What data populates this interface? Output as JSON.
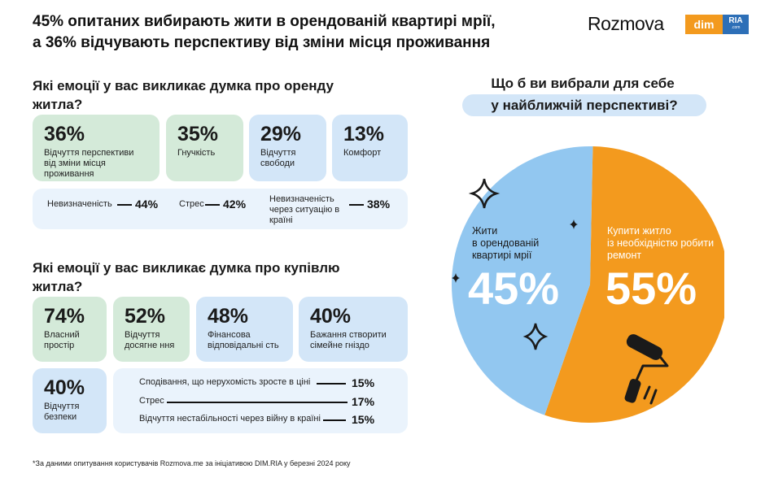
{
  "header": {
    "title_line1": "45% опитаних вибирають жити в орендованій квартирі мрії,",
    "title_line2": "а 36% відчувають перспективу від зміни місця проживання",
    "brand": "Rozmova",
    "logo_dim": "dim",
    "logo_ria": "RIA",
    "logo_ria_sub": ".com"
  },
  "rent": {
    "question_line1": "Які емоції у вас викликає думка про оренду",
    "question_line2": "житла?",
    "cards": [
      {
        "pct": "36%",
        "label": "Відчуття перспективи від зміни місця проживання"
      },
      {
        "pct": "35%",
        "label": "Гнучкість"
      },
      {
        "pct": "29%",
        "label": "Відчуття свободи"
      },
      {
        "pct": "13%",
        "label": "Комфорт"
      }
    ],
    "bar_items": [
      {
        "label": "Невизначеність",
        "value": "44%"
      },
      {
        "label": "Стрес",
        "value": "42%"
      },
      {
        "label": "Невизначеність через ситуацію в країні",
        "value": "38%"
      }
    ]
  },
  "buy": {
    "question_line1": "Які емоції у вас викликає думка про купівлю",
    "question_line2": "житла?",
    "cards": [
      {
        "pct": "74%",
        "label": "Власний простір"
      },
      {
        "pct": "52%",
        "label": "Відчуття досягне ння"
      },
      {
        "pct": "48%",
        "label": "Фінансова відповідальні сть"
      },
      {
        "pct": "40%",
        "label": "Бажання створити сімейне гніздо"
      },
      {
        "pct": "40%",
        "label": "Відчуття безпеки"
      }
    ],
    "bar_items": [
      {
        "label": "Сподівання, що нерухомість зросте в ціні",
        "value": "15%"
      },
      {
        "label": "Стрес",
        "value": "17%"
      },
      {
        "label": "Відчуття нестабільності через війну в країні",
        "value": "15%"
      }
    ]
  },
  "chart_data": {
    "type": "pie",
    "title_line1": "Що б ви вибрали для себе",
    "title_line2": "у найближчій перспективі?",
    "slices": [
      {
        "label": "Жити в орендованій квартирі мрії",
        "value": 45,
        "display": "45%",
        "color": "#92c7f0"
      },
      {
        "label": "Купити житло із необхідністю робити ремонт",
        "value": 55,
        "display": "55%",
        "color": "#f39a1e"
      }
    ]
  },
  "footnote": "*За даними опитування користувачів Rozmova.me за ініціативою DIM.RIA у березні 2024 року"
}
